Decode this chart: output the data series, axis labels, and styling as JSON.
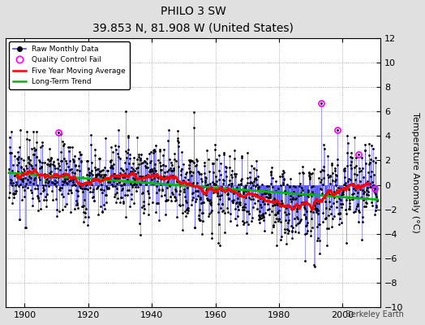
{
  "title": "PHILO 3 SW",
  "subtitle": "39.853 N, 81.908 W (United States)",
  "ylabel": "Temperature Anomaly (°C)",
  "credit": "Berkeley Earth",
  "year_start": 1895,
  "year_end": 2011,
  "ylim": [
    -10,
    12
  ],
  "yticks": [
    -10,
    -8,
    -6,
    -4,
    -2,
    0,
    2,
    4,
    6,
    8,
    10,
    12
  ],
  "xticks": [
    1900,
    1920,
    1940,
    1960,
    1980,
    2000
  ],
  "raw_color": "#4444ff",
  "mavg_color": "#ff0000",
  "trend_color": "#00bb00",
  "qc_color": "#ff00ff",
  "bg_color": "#e0e0e0",
  "plot_bg": "#ffffff",
  "seed": 17
}
